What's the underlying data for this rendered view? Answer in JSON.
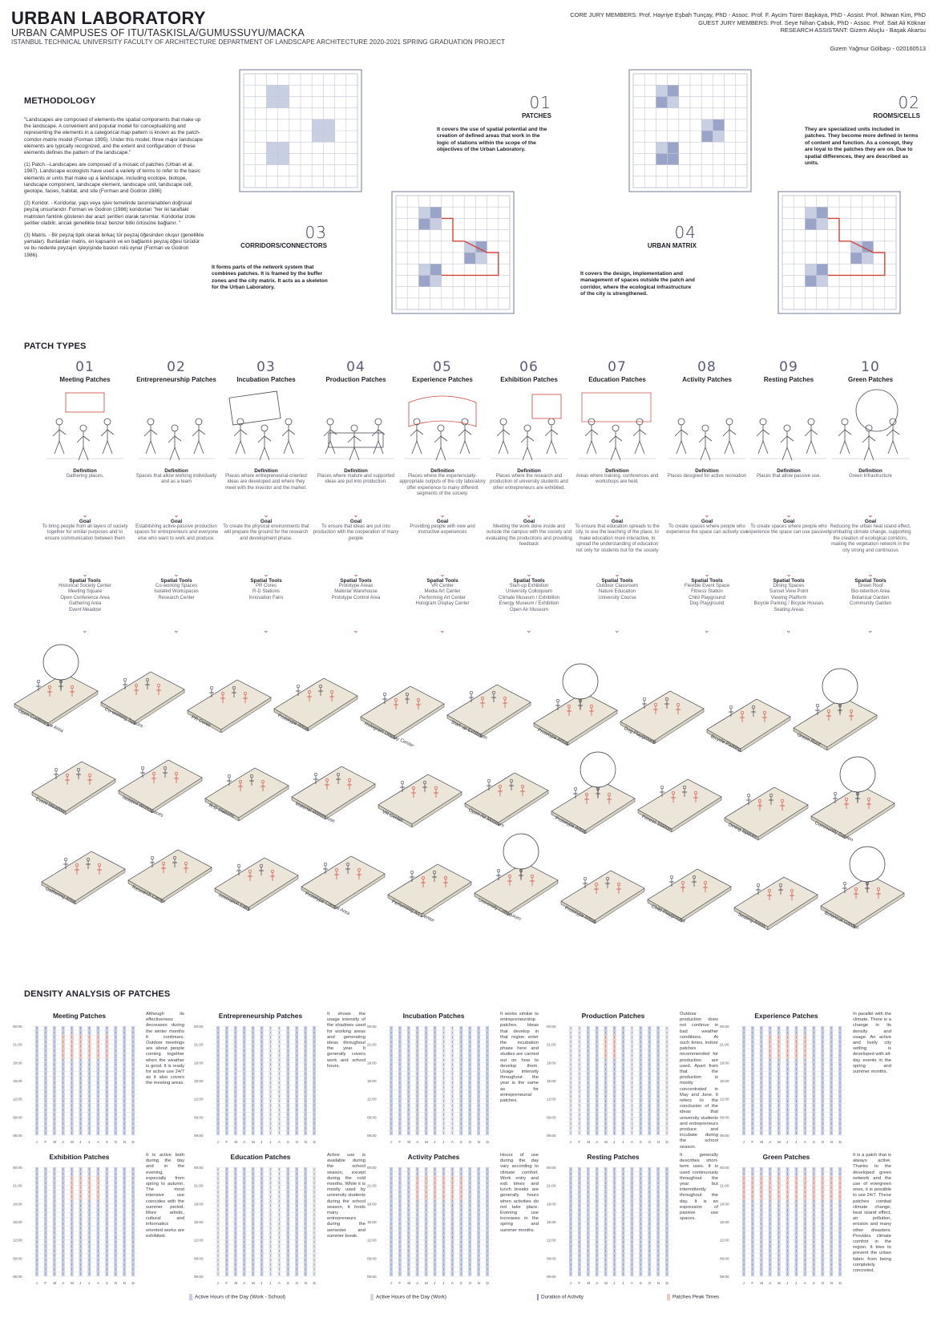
{
  "header": {
    "title": "URBAN LABORATORY",
    "subtitle": "URBAN CAMPUSES OF ITU/TASKISLA/GUMUSSUYU/MACKA",
    "subtitle2": "ISTANBUL TECHNICAL UNIVERSITY FACULTY OF ARCHITECTURE DEPARTMENT OF LANDSCAPE ARCHITECTURE 2020-2021 SPRING GRADUATION PROJECT",
    "core_jury": "CORE JURY MEMBERS: Prof. Hayriye Eşbah Tunçay, PhD - Assoc. Prof. F. Aycim Türer Başkaya, PhD - Assist. Prof. Ikhwan Kim, PhD",
    "guest_jury": "GUEST JURY MEMBERS: Prof. Seye Nihan Çabuk, PhD - Assoc. Prof. Sait Ali Köknar",
    "assistant": "RESEARCH ASSISTANT: Gizem Aluçlu - Başak Akarsu",
    "author": "Gizem Yağmur Gölbaşı - 020160513"
  },
  "methodology": {
    "title": "METHODOLOGY",
    "p1": "\"Landscapes are composed of elements-the spatial components that make up the landscape. A convenient and popular model for conceptualizing and representing the elements in a categorical map pattern is known as the patch-corridor-matrix model (Forman 1995). Under this model, three major landscape elements are typically recognized, and the extent and configuration of these elements defines the pattern of the landscape.\"",
    "p2": "(1) Patch.--Landscapes are composed of a mosaic of patches (Urban et al. 1987). Landscape ecologists have used a variety of terms to refer to the basic elements or units that make up a landscape, including ecotope, biotope, landscape component, landscape element, landscape unit, landscape cell, geotope, facies, habitat, and site (Forman and Godron 1986)",
    "p3": "(2) Koridor. - Koridorlar, yapı veya işlev temelinde tanımlanabilen doğrusal peyzaj unsurlarıdır. Forman ve Godron (1986) koridorları \"her iki taraftaki matristen farklılık gösteren dar arazi şeritleri olarak tanımlar. Koridorlar izole şeritler olabilir, ancak genellikle biraz benzer bitki örtüsüne bağlanır. \"",
    "p4": "(3) Matris. - Bir peyzaj tipik olarak birkaç tür peyzaj öğesinden oluşur (genellikle yamalar). Bunlardan matris, en kapsamlı ve en bağlantılı peyzaj öğesi türüdür ve bu nedenle peyzajın işleyişinde baskın rolü oynar (Forman ve Godron 1986)."
  },
  "concepts": [
    {
      "no": "01",
      "title": "PATCHES",
      "text": "It covers the use of spatial potential and the creation of defined areas that work in the logic of stations within the scope of the objectives of the Urban Laboratory."
    },
    {
      "no": "02",
      "title": "ROOMS/CELLS",
      "text": "They are specialized units included in patches. They become more defined in terms of content and function. As a concept, they are loyal to the patches they are on. Due to spatial differences, they are described as units."
    },
    {
      "no": "03",
      "title": "CORRIDORS/CONNECTORS",
      "text": "It forms parts of the network system that combines patches. It is framed by the buffer zones and the city matrix. It acts as a skeleton for the Urban Laboratory."
    },
    {
      "no": "04",
      "title": "URBAN MATRIX",
      "text": "It covers the design, implementation and management of spaces outside the patch and corridor, where the ecological infrastructure of the city is strengthened."
    }
  ],
  "patch_types": {
    "title": "PATCH TYPES",
    "definition_label": "Definition",
    "goal_label": "Goal",
    "tools_label": "Spatial Tools",
    "items": [
      {
        "no": "01",
        "name": "Meeting Patches",
        "definition": "Gathering places.",
        "goal": "To bring people from all layers of society together for similar purposes and to ensure communication between them",
        "tools": "Historical Society Center\nMeeting Square\nOpen Conference Area\nGathering Area\nEvent Meadow"
      },
      {
        "no": "02",
        "name": "Entrepreneurship Patches",
        "definition": "Spaces that allow working individually and as a team",
        "goal": "Establishing active-passive production spaces for entrepreneurs and everyone else who want to work and produce.",
        "tools": "Co-working Spaces\nIsolated Workspaces\nResearch Center"
      },
      {
        "no": "03",
        "name": "Incubation Patches",
        "definition": "Places where entrepreneurial-oriented ideas are developed and where they meet with the investor and the market.",
        "goal": "To create the physical environments that will prepare the ground for the research and development phase.",
        "tools": "PR Cores\nR-D Stations\nInnovation Fairs"
      },
      {
        "no": "04",
        "name": "Production Patches",
        "definition": "Places where mature and supported ideas are put into production.",
        "goal": "To ensure that ideas are put into production with the cooperation of many people",
        "tools": "Prototype Areas\nMaterial Warehouse\nPrototype Control Area"
      },
      {
        "no": "05",
        "name": "Experience Patches",
        "definition": "Places where the experiencially-appropriate outputs of the city laboratory offer experience to many different segments of the society.",
        "goal": "Providing people with new and instructive experiences",
        "tools": "VR Center\nMedia Art Center\nPerforming Art Center\nHologram Display Center"
      },
      {
        "no": "06",
        "name": "Exhibition Patches",
        "definition": "Places where the research and production of university students and other entrepreneurs are exhibited.",
        "goal": "Meeting the work done inside and outside the campus with the society and evaluating the productions and providing feedback",
        "tools": "Start-up Exhibition\nUniversity Colloquium\nClimate Museum / Exhibition\nEnergy Museum / Exhibition\nOpen Air Museum"
      },
      {
        "no": "07",
        "name": "Education Patches",
        "definition": "Areas where training, conferences and workshops are held.",
        "goal": "To ensure that education spreads to the city, to use the teaching of the place, to make education more interactive, to spread the understanding of education not only for students but for the society",
        "tools": "Outdoor Classroom\nNature Education\nUniversity Course"
      },
      {
        "no": "08",
        "name": "Activity Patches",
        "definition": "Places designed for active recreation",
        "goal": "To create spaces where people who experience the space can actively use",
        "tools": "Flexible Event Space\nFitness Station\nChild Playground\nDog Playground"
      },
      {
        "no": "09",
        "name": "Resting Patches",
        "definition": "Places that allow passive use.",
        "goal": "To create spaces where people who experience the space can use passively",
        "tools": "Dining Spaces\nSunset View Point\nViewing Platform\nBicycle Parking / Bicycle Houses\nSeating Areas"
      },
      {
        "no": "10",
        "name": "Green Patches",
        "definition": "Green Infrastructure",
        "goal": "Reducing the urban heat island effect, combating climate change, supporting the creation of ecological corridors, making the vegetation network in the city strong and continuous",
        "tools": "Green Roof\nBio-retention Area\nBotanical Garden\nCommunity Garden"
      }
    ]
  },
  "iso_rows": [
    [
      "Open Conference Area",
      "Co-working Spaces",
      "PR Cores",
      "Prototype Areas",
      "Hologram Display Center",
      "Start-up Exhibition",
      "Prototype Areas",
      "Dog Playground",
      "Bicycle Parking",
      "Green Roof"
    ],
    [
      "Event Meadow",
      "Isolated Workspaces",
      "R-D Stations",
      "Material Warehouse",
      "VR Center",
      "Open Air Museum",
      "Prototype Areas",
      "Fitness Station",
      "Dining Spaces",
      "Community Garden"
    ],
    [
      "Gathering Area",
      "Research Center",
      "Innovation Fairs",
      "Prototype Control Area",
      "Performing Art Center",
      "University Colloquium",
      "Prototype Areas",
      "Child Playground",
      "Seating Areas",
      "Botanical Garden"
    ]
  ],
  "density": {
    "title": "DENSITY ANALYSIS OF PATCHES",
    "y_ticks": [
      "00:00",
      "21:00",
      "18:00",
      "15:00",
      "12:00",
      "09:00",
      "06:00"
    ],
    "months": [
      "J",
      "F",
      "M",
      "A",
      "M",
      "J",
      "J",
      "A",
      "S",
      "O",
      "N",
      "D"
    ],
    "charts": [
      {
        "name": "Meeting Patches",
        "text": "Although its effectiveness decreases during the winter months it continues. Outdoor meetings are about people coming together when the weather is good. It is ready for active use 24/7 as it also covers the meeting areas."
      },
      {
        "name": "Entrepreneurship Patches",
        "text": "It shows the usage intensity of the shadows used for working areas and generating ideas throughout the year. It generally covers work and school hours."
      },
      {
        "name": "Incubation Patches",
        "text": "It works similar to entrepreneurship patches. Ideas that develop in that region enter the incubation phase here and studies are carried out on how to develop them. Usage intensity throughout the year is the same as for entrepreneurial patches."
      },
      {
        "name": "Production Patches",
        "text": "Outdoor production does not continue in bad weather conditions. At such times, indoor patches recommended for production are used. Apart from that the production is mostly concentrated in May and June. It refers to the conclusion of the ideas that university students and entrepreneurs produce and incubate during the school season."
      },
      {
        "name": "Experience Patches",
        "text": "In parallel with the climate. There is a change in its density and usage. An active and lively city setting is developed with all-day events in the spring and summer months."
      },
      {
        "name": "Exhibition Patches",
        "text": "It is active both during the day and in the evening, especially from spring to autumn. The most intensive use coincides with the summer period. More artistic, cultural and informatics oriented works are exhibited."
      },
      {
        "name": "Education Patches",
        "text": "Active use is available during the school season, except during the cold months. While it is mostly used by university students during the school season, it hosts many entrepreneurs during the semester and summer break."
      },
      {
        "name": "Activity Patches",
        "text": "Hours of use during the day vary according to climate comfort. Work entry and exit times and lunch breaks are generally hours when activities do not take place. Evening use increases in the spring and summer months."
      },
      {
        "name": "Resting Patches",
        "text": "It generally describes short-term uses. It is used continuously throughout the year but intermittently throughout the day. It is an expression of passive use spaces."
      },
      {
        "name": "Green Patches",
        "text": "It is a patch that is always active. Thanks to the developed green network and the use of evergreen ones, it is possible to use 24/7. These patches combat climate change, heat island effect, air pollution, erosion and many other disasters. Provides climate comfort in the region. It tries to prevent the urban fabric from being completely concreted."
      }
    ],
    "legend": [
      "Active Hours of the Day (Work - School)",
      "Active Hours of the Day (Work)",
      "Duration of Activity",
      "Patches Peak Times"
    ]
  },
  "colors": {
    "accent_red": "#d0453a",
    "navy": "#3b4a86",
    "light_red": "#f0c8c0",
    "grid": "#c5c8d6",
    "cell": "#c9cfe3"
  }
}
